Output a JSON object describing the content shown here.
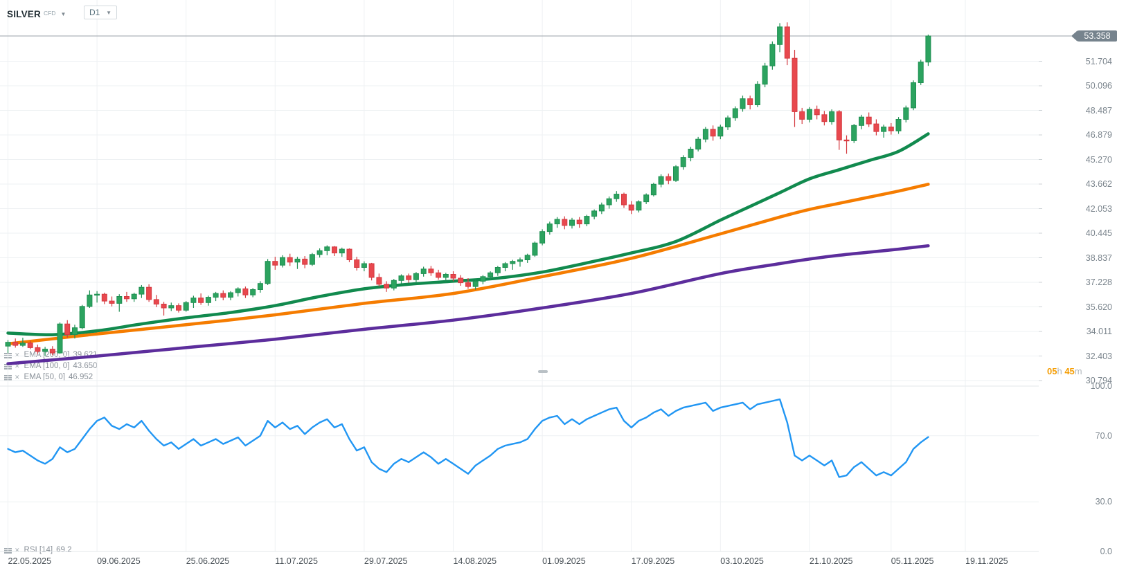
{
  "header": {
    "symbol": "SILVER",
    "instrument_type": "CFD",
    "timeframe": "D1"
  },
  "price_axis": {
    "current_price": "53.358",
    "ticks": [
      51.704,
      50.096,
      48.487,
      46.879,
      45.27,
      43.662,
      42.053,
      40.445,
      38.837,
      37.228,
      35.62,
      34.011,
      32.403,
      30.794
    ]
  },
  "countdown": {
    "hours": "05",
    "hours_unit": "h",
    "minutes": "45",
    "minutes_unit": "m"
  },
  "indicator_labels": [
    {
      "name": "EMA",
      "params": "[200, 0]",
      "value": "39.621"
    },
    {
      "name": "EMA",
      "params": "[100, 0]",
      "value": "43.650"
    },
    {
      "name": "EMA",
      "params": "[50, 0]",
      "value": "46.952"
    }
  ],
  "rsi_label": {
    "name": "RSI",
    "params": "[14]",
    "value": "69.2"
  },
  "rsi_axis": [
    {
      "label": "100.0",
      "value": 100
    },
    {
      "label": "70.0",
      "value": 70
    },
    {
      "label": "30.0",
      "value": 30
    },
    {
      "label": "0.0",
      "value": 0
    }
  ],
  "date_axis": [
    {
      "label": "22.05.2025",
      "bar": 0
    },
    {
      "label": "09.06.2025",
      "bar": 12
    },
    {
      "label": "25.06.2025",
      "bar": 24
    },
    {
      "label": "11.07.2025",
      "bar": 36
    },
    {
      "label": "29.07.2025",
      "bar": 48
    },
    {
      "label": "14.08.2025",
      "bar": 60
    },
    {
      "label": "01.09.2025",
      "bar": 72
    },
    {
      "label": "17.09.2025",
      "bar": 84
    },
    {
      "label": "03.10.2025",
      "bar": 96
    },
    {
      "label": "21.10.2025",
      "bar": 108
    },
    {
      "label": "05.11.2025",
      "bar": 119
    },
    {
      "label": "19.11.2025",
      "bar": 129
    }
  ],
  "colors": {
    "candle_up": "#2CA35F",
    "candle_up_border": "#1F8F52",
    "candle_down": "#E8484E",
    "candle_down_border": "#D43A40",
    "ema200": "#5C2D9C",
    "ema100": "#F57C00",
    "ema50": "#118A4E",
    "rsi": "#2196F3",
    "current_price_line": "#9AA1A8",
    "badge_bg": "#76838D",
    "grid": "#EEF1F3",
    "grid_strong": "#E3E7EA",
    "tick": "#CCD2D6"
  },
  "chart_data": {
    "type": "candlestick",
    "symbol": "SILVER",
    "timeframe": "D1",
    "y_axis": {
      "min": 30.794,
      "max": 53.358
    },
    "candles": [
      [
        33.05,
        33.45,
        32.6,
        33.3
      ],
      [
        33.3,
        33.55,
        32.95,
        33.1
      ],
      [
        33.1,
        33.6,
        33.0,
        33.25
      ],
      [
        33.25,
        33.4,
        32.85,
        32.95
      ],
      [
        32.95,
        33.15,
        32.55,
        32.7
      ],
      [
        32.7,
        33.0,
        32.4,
        32.85
      ],
      [
        32.85,
        33.05,
        32.45,
        32.6
      ],
      [
        32.6,
        34.6,
        32.55,
        34.5
      ],
      [
        34.5,
        34.75,
        33.6,
        33.8
      ],
      [
        33.8,
        34.45,
        33.55,
        34.25
      ],
      [
        34.25,
        35.75,
        34.15,
        35.65
      ],
      [
        35.65,
        36.7,
        35.55,
        36.4
      ],
      [
        36.4,
        36.65,
        35.9,
        36.45
      ],
      [
        36.45,
        36.55,
        35.8,
        36.0
      ],
      [
        36.0,
        36.3,
        35.65,
        35.85
      ],
      [
        35.85,
        36.45,
        35.3,
        36.3
      ],
      [
        36.3,
        36.6,
        35.95,
        36.15
      ],
      [
        36.15,
        36.55,
        35.95,
        36.45
      ],
      [
        36.45,
        37.05,
        36.2,
        36.9
      ],
      [
        36.9,
        37.1,
        35.95,
        36.1
      ],
      [
        36.1,
        36.4,
        35.6,
        35.8
      ],
      [
        35.8,
        35.95,
        35.05,
        35.55
      ],
      [
        35.55,
        35.9,
        35.35,
        35.7
      ],
      [
        35.7,
        35.85,
        35.25,
        35.4
      ],
      [
        35.4,
        36.0,
        35.3,
        35.9
      ],
      [
        35.9,
        36.35,
        35.55,
        36.2
      ],
      [
        36.2,
        36.5,
        35.75,
        35.9
      ],
      [
        35.9,
        36.35,
        35.7,
        36.25
      ],
      [
        36.25,
        36.6,
        36.0,
        36.5
      ],
      [
        36.5,
        36.7,
        36.05,
        36.25
      ],
      [
        36.25,
        36.65,
        36.05,
        36.55
      ],
      [
        36.55,
        36.9,
        36.3,
        36.8
      ],
      [
        36.8,
        36.95,
        36.2,
        36.4
      ],
      [
        36.4,
        36.85,
        36.25,
        36.75
      ],
      [
        36.75,
        37.3,
        36.55,
        37.15
      ],
      [
        37.15,
        38.75,
        37.05,
        38.6
      ],
      [
        38.6,
        38.9,
        38.05,
        38.35
      ],
      [
        38.35,
        39.0,
        38.2,
        38.85
      ],
      [
        38.85,
        39.1,
        38.3,
        38.55
      ],
      [
        38.55,
        38.9,
        38.1,
        38.75
      ],
      [
        38.75,
        38.95,
        38.15,
        38.4
      ],
      [
        38.4,
        39.15,
        38.3,
        39.05
      ],
      [
        39.05,
        39.45,
        38.85,
        39.3
      ],
      [
        39.3,
        39.65,
        39.0,
        39.55
      ],
      [
        39.55,
        39.6,
        38.95,
        39.15
      ],
      [
        39.15,
        39.5,
        38.9,
        39.4
      ],
      [
        39.4,
        39.45,
        38.55,
        38.7
      ],
      [
        38.7,
        38.9,
        38.0,
        38.2
      ],
      [
        38.2,
        38.6,
        37.95,
        38.45
      ],
      [
        38.45,
        38.5,
        37.35,
        37.55
      ],
      [
        37.55,
        37.8,
        36.95,
        37.1
      ],
      [
        37.1,
        37.3,
        36.6,
        36.85
      ],
      [
        36.85,
        37.45,
        36.7,
        37.35
      ],
      [
        37.35,
        37.75,
        37.1,
        37.65
      ],
      [
        37.65,
        37.8,
        37.2,
        37.4
      ],
      [
        37.4,
        37.9,
        37.25,
        37.8
      ],
      [
        37.8,
        38.25,
        37.6,
        38.1
      ],
      [
        38.1,
        38.3,
        37.65,
        37.85
      ],
      [
        37.85,
        38.05,
        37.4,
        37.55
      ],
      [
        37.55,
        37.85,
        37.25,
        37.75
      ],
      [
        37.75,
        37.95,
        37.3,
        37.5
      ],
      [
        37.5,
        37.7,
        37.0,
        37.2
      ],
      [
        37.2,
        37.5,
        36.8,
        36.95
      ],
      [
        36.95,
        37.4,
        36.75,
        37.3
      ],
      [
        37.3,
        37.7,
        37.1,
        37.6
      ],
      [
        37.6,
        37.95,
        37.4,
        37.85
      ],
      [
        37.85,
        38.3,
        37.65,
        38.2
      ],
      [
        38.2,
        38.55,
        37.95,
        38.45
      ],
      [
        38.45,
        38.7,
        38.05,
        38.6
      ],
      [
        38.6,
        38.85,
        38.25,
        38.7
      ],
      [
        38.7,
        39.1,
        38.5,
        39.0
      ],
      [
        39.0,
        39.9,
        38.9,
        39.8
      ],
      [
        39.8,
        40.7,
        39.65,
        40.55
      ],
      [
        40.55,
        41.2,
        40.35,
        41.05
      ],
      [
        41.05,
        41.5,
        40.8,
        41.35
      ],
      [
        41.35,
        41.55,
        40.7,
        40.95
      ],
      [
        40.95,
        41.45,
        40.75,
        41.3
      ],
      [
        41.3,
        41.5,
        40.8,
        41.05
      ],
      [
        41.05,
        41.65,
        40.9,
        41.55
      ],
      [
        41.55,
        42.0,
        41.35,
        41.9
      ],
      [
        41.9,
        42.45,
        41.7,
        42.3
      ],
      [
        42.3,
        42.85,
        42.05,
        42.7
      ],
      [
        42.7,
        43.2,
        42.5,
        43.0
      ],
      [
        43.0,
        43.1,
        42.1,
        42.3
      ],
      [
        42.3,
        42.55,
        41.7,
        41.95
      ],
      [
        41.95,
        42.6,
        41.8,
        42.5
      ],
      [
        42.5,
        43.05,
        42.35,
        42.95
      ],
      [
        42.95,
        43.75,
        42.85,
        43.65
      ],
      [
        43.65,
        44.3,
        43.45,
        44.15
      ],
      [
        44.15,
        44.35,
        43.65,
        43.9
      ],
      [
        43.9,
        44.9,
        43.8,
        44.8
      ],
      [
        44.8,
        45.55,
        44.6,
        45.4
      ],
      [
        45.4,
        46.1,
        45.15,
        45.95
      ],
      [
        45.95,
        46.75,
        45.8,
        46.6
      ],
      [
        46.6,
        47.4,
        46.4,
        47.25
      ],
      [
        47.25,
        47.5,
        46.5,
        46.8
      ],
      [
        46.8,
        47.55,
        46.6,
        47.4
      ],
      [
        47.4,
        48.15,
        47.2,
        48.0
      ],
      [
        48.0,
        48.75,
        47.8,
        48.6
      ],
      [
        48.6,
        49.45,
        48.4,
        49.25
      ],
      [
        49.25,
        49.45,
        48.55,
        48.85
      ],
      [
        48.85,
        50.4,
        48.7,
        50.2
      ],
      [
        50.2,
        51.6,
        50.0,
        51.4
      ],
      [
        51.4,
        53.0,
        51.15,
        52.8
      ],
      [
        52.8,
        54.2,
        52.3,
        53.95
      ],
      [
        53.95,
        54.25,
        51.45,
        51.9
      ],
      [
        51.9,
        52.45,
        47.4,
        48.4
      ],
      [
        48.4,
        48.65,
        47.6,
        47.9
      ],
      [
        47.9,
        48.7,
        47.7,
        48.55
      ],
      [
        48.55,
        48.8,
        47.9,
        48.2
      ],
      [
        48.2,
        48.45,
        47.5,
        47.75
      ],
      [
        47.75,
        48.55,
        47.55,
        48.4
      ],
      [
        48.4,
        48.5,
        45.9,
        46.55
      ],
      [
        46.55,
        46.85,
        45.65,
        46.5
      ],
      [
        46.5,
        47.6,
        46.35,
        47.5
      ],
      [
        47.5,
        48.2,
        47.25,
        48.05
      ],
      [
        48.05,
        48.35,
        47.4,
        47.6
      ],
      [
        47.6,
        47.9,
        46.85,
        47.1
      ],
      [
        47.1,
        47.55,
        46.7,
        47.4
      ],
      [
        47.4,
        47.65,
        46.9,
        47.15
      ],
      [
        47.15,
        48.05,
        46.95,
        47.9
      ],
      [
        47.9,
        48.8,
        47.7,
        48.65
      ],
      [
        48.65,
        50.45,
        48.5,
        50.3
      ],
      [
        50.3,
        51.8,
        50.15,
        51.65
      ],
      [
        51.65,
        53.45,
        51.4,
        53.358
      ]
    ],
    "overlays": [
      {
        "type": "ema",
        "period": 50,
        "color_key": "ema50",
        "last_value": 46.952,
        "points": [
          [
            0,
            33.9
          ],
          [
            6,
            33.8
          ],
          [
            12,
            34.05
          ],
          [
            18,
            34.5
          ],
          [
            24,
            34.9
          ],
          [
            30,
            35.25
          ],
          [
            36,
            35.7
          ],
          [
            42,
            36.3
          ],
          [
            48,
            36.8
          ],
          [
            54,
            37.1
          ],
          [
            60,
            37.3
          ],
          [
            66,
            37.5
          ],
          [
            72,
            37.9
          ],
          [
            78,
            38.5
          ],
          [
            84,
            39.15
          ],
          [
            90,
            39.9
          ],
          [
            96,
            41.3
          ],
          [
            100,
            42.2
          ],
          [
            104,
            43.1
          ],
          [
            108,
            44.0
          ],
          [
            112,
            44.6
          ],
          [
            116,
            45.2
          ],
          [
            120,
            45.8
          ],
          [
            124,
            46.95
          ]
        ]
      },
      {
        "type": "ema",
        "period": 100,
        "color_key": "ema100",
        "last_value": 43.65,
        "points": [
          [
            0,
            33.2
          ],
          [
            12,
            33.85
          ],
          [
            24,
            34.45
          ],
          [
            36,
            35.1
          ],
          [
            48,
            35.85
          ],
          [
            60,
            36.5
          ],
          [
            72,
            37.6
          ],
          [
            84,
            38.8
          ],
          [
            96,
            40.4
          ],
          [
            104,
            41.5
          ],
          [
            108,
            42.0
          ],
          [
            112,
            42.4
          ],
          [
            116,
            42.8
          ],
          [
            120,
            43.2
          ],
          [
            124,
            43.65
          ]
        ]
      },
      {
        "type": "ema",
        "period": 200,
        "color_key": "ema200",
        "last_value": 39.621,
        "points": [
          [
            0,
            31.9
          ],
          [
            12,
            32.4
          ],
          [
            24,
            32.95
          ],
          [
            36,
            33.5
          ],
          [
            48,
            34.15
          ],
          [
            60,
            34.75
          ],
          [
            72,
            35.55
          ],
          [
            84,
            36.5
          ],
          [
            96,
            37.8
          ],
          [
            104,
            38.45
          ],
          [
            108,
            38.75
          ],
          [
            112,
            39.0
          ],
          [
            116,
            39.2
          ],
          [
            120,
            39.4
          ],
          [
            124,
            39.62
          ]
        ]
      }
    ],
    "indicator_panel": {
      "type": "rsi",
      "period": 14,
      "range": [
        0,
        100
      ],
      "levels": [
        30,
        70
      ],
      "current": 69.2,
      "values": [
        62,
        60,
        61,
        58,
        55,
        53,
        56,
        63,
        60,
        62,
        68,
        74,
        79,
        81,
        76,
        74,
        77,
        75,
        79,
        73,
        68,
        64,
        66,
        62,
        65,
        68,
        64,
        66,
        68,
        65,
        67,
        69,
        64,
        67,
        70,
        79,
        75,
        78,
        74,
        76,
        71,
        75,
        78,
        80,
        75,
        77,
        68,
        61,
        63,
        54,
        50,
        48,
        53,
        56,
        54,
        57,
        60,
        57,
        53,
        56,
        53,
        50,
        47,
        52,
        55,
        58,
        62,
        64,
        65,
        66,
        68,
        74,
        79,
        81,
        82,
        77,
        80,
        77,
        80,
        82,
        84,
        86,
        87,
        79,
        75,
        79,
        81,
        84,
        86,
        82,
        85,
        87,
        88,
        89,
        90,
        85,
        87,
        88,
        89,
        90,
        86,
        89,
        90,
        91,
        92,
        78,
        58,
        55,
        58,
        55,
        52,
        55,
        45,
        46,
        51,
        54,
        50,
        46,
        48,
        46,
        50,
        54,
        62,
        66,
        69.2
      ]
    }
  }
}
